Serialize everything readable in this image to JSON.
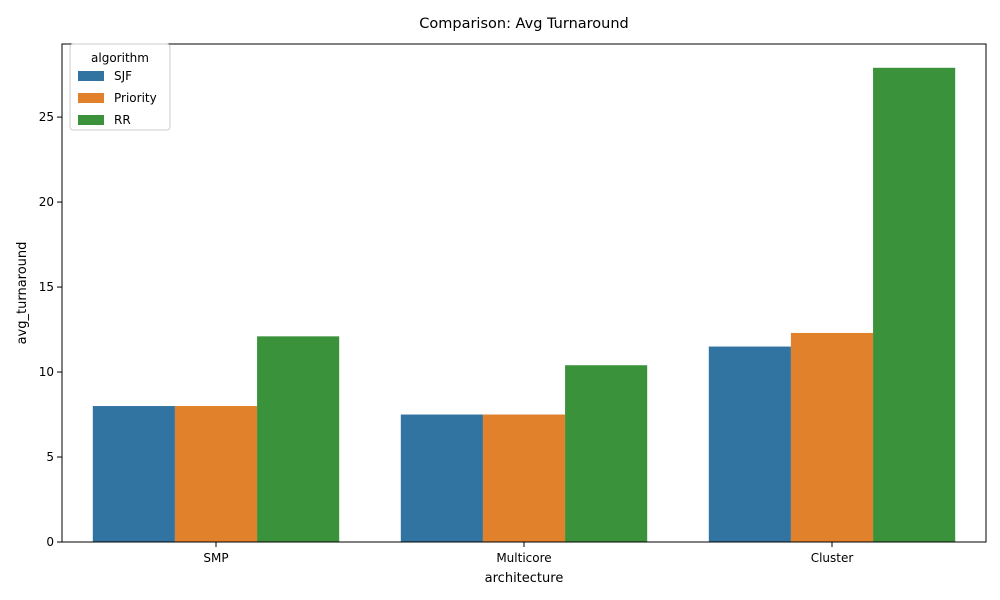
{
  "chart_data": {
    "type": "bar",
    "title": "Comparison: Avg Turnaround",
    "xlabel": "architecture",
    "ylabel": "avg_turnaround",
    "categories": [
      "SMP",
      "Multicore",
      "Cluster"
    ],
    "series": [
      {
        "name": "SJF",
        "values": [
          8.0,
          7.5,
          11.5
        ],
        "color": "#3274a1"
      },
      {
        "name": "Priority",
        "values": [
          8.0,
          7.5,
          12.3
        ],
        "color": "#e1812c"
      },
      {
        "name": "RR",
        "values": [
          12.1,
          10.4,
          27.9
        ],
        "color": "#3a923a"
      }
    ],
    "ylim": [
      0,
      29.3
    ],
    "yticks": [
      0,
      5,
      10,
      15,
      20,
      25
    ],
    "legend": {
      "title": "algorithm",
      "position": "top-left"
    },
    "grid": false
  }
}
